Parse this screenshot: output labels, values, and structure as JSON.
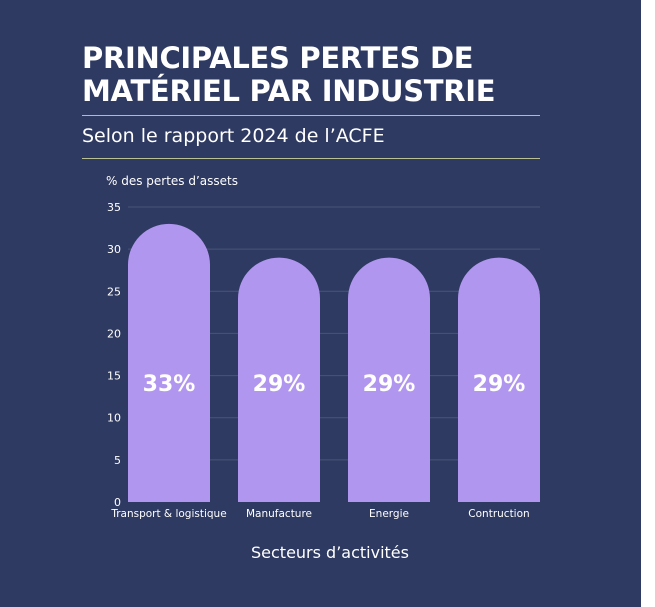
{
  "header": {
    "title": "PRINCIPALES PERTES DE MATÉRIEL PAR INDUSTRIE",
    "subtitle": "Selon le rapport 2024 de l’ACFE"
  },
  "colors": {
    "background": "#2e3a62",
    "bar": "#b196f0",
    "rule": "#b9c193",
    "grid": "#4a5478",
    "text": "#ffffff"
  },
  "chart_data": {
    "type": "bar",
    "title": "",
    "ylabel": "% des pertes d’assets",
    "xlabel": "Secteurs d’activités",
    "categories": [
      "Transport & logistique",
      "Manufacture",
      "Energie",
      "Contruction"
    ],
    "values": [
      33,
      29,
      29,
      29
    ],
    "data_labels": [
      "33%",
      "29%",
      "29%",
      "29%"
    ],
    "ylim": [
      0,
      35
    ],
    "yticks": [
      0,
      5,
      10,
      15,
      20,
      25,
      30,
      35
    ],
    "grid": true,
    "legend": "none"
  }
}
